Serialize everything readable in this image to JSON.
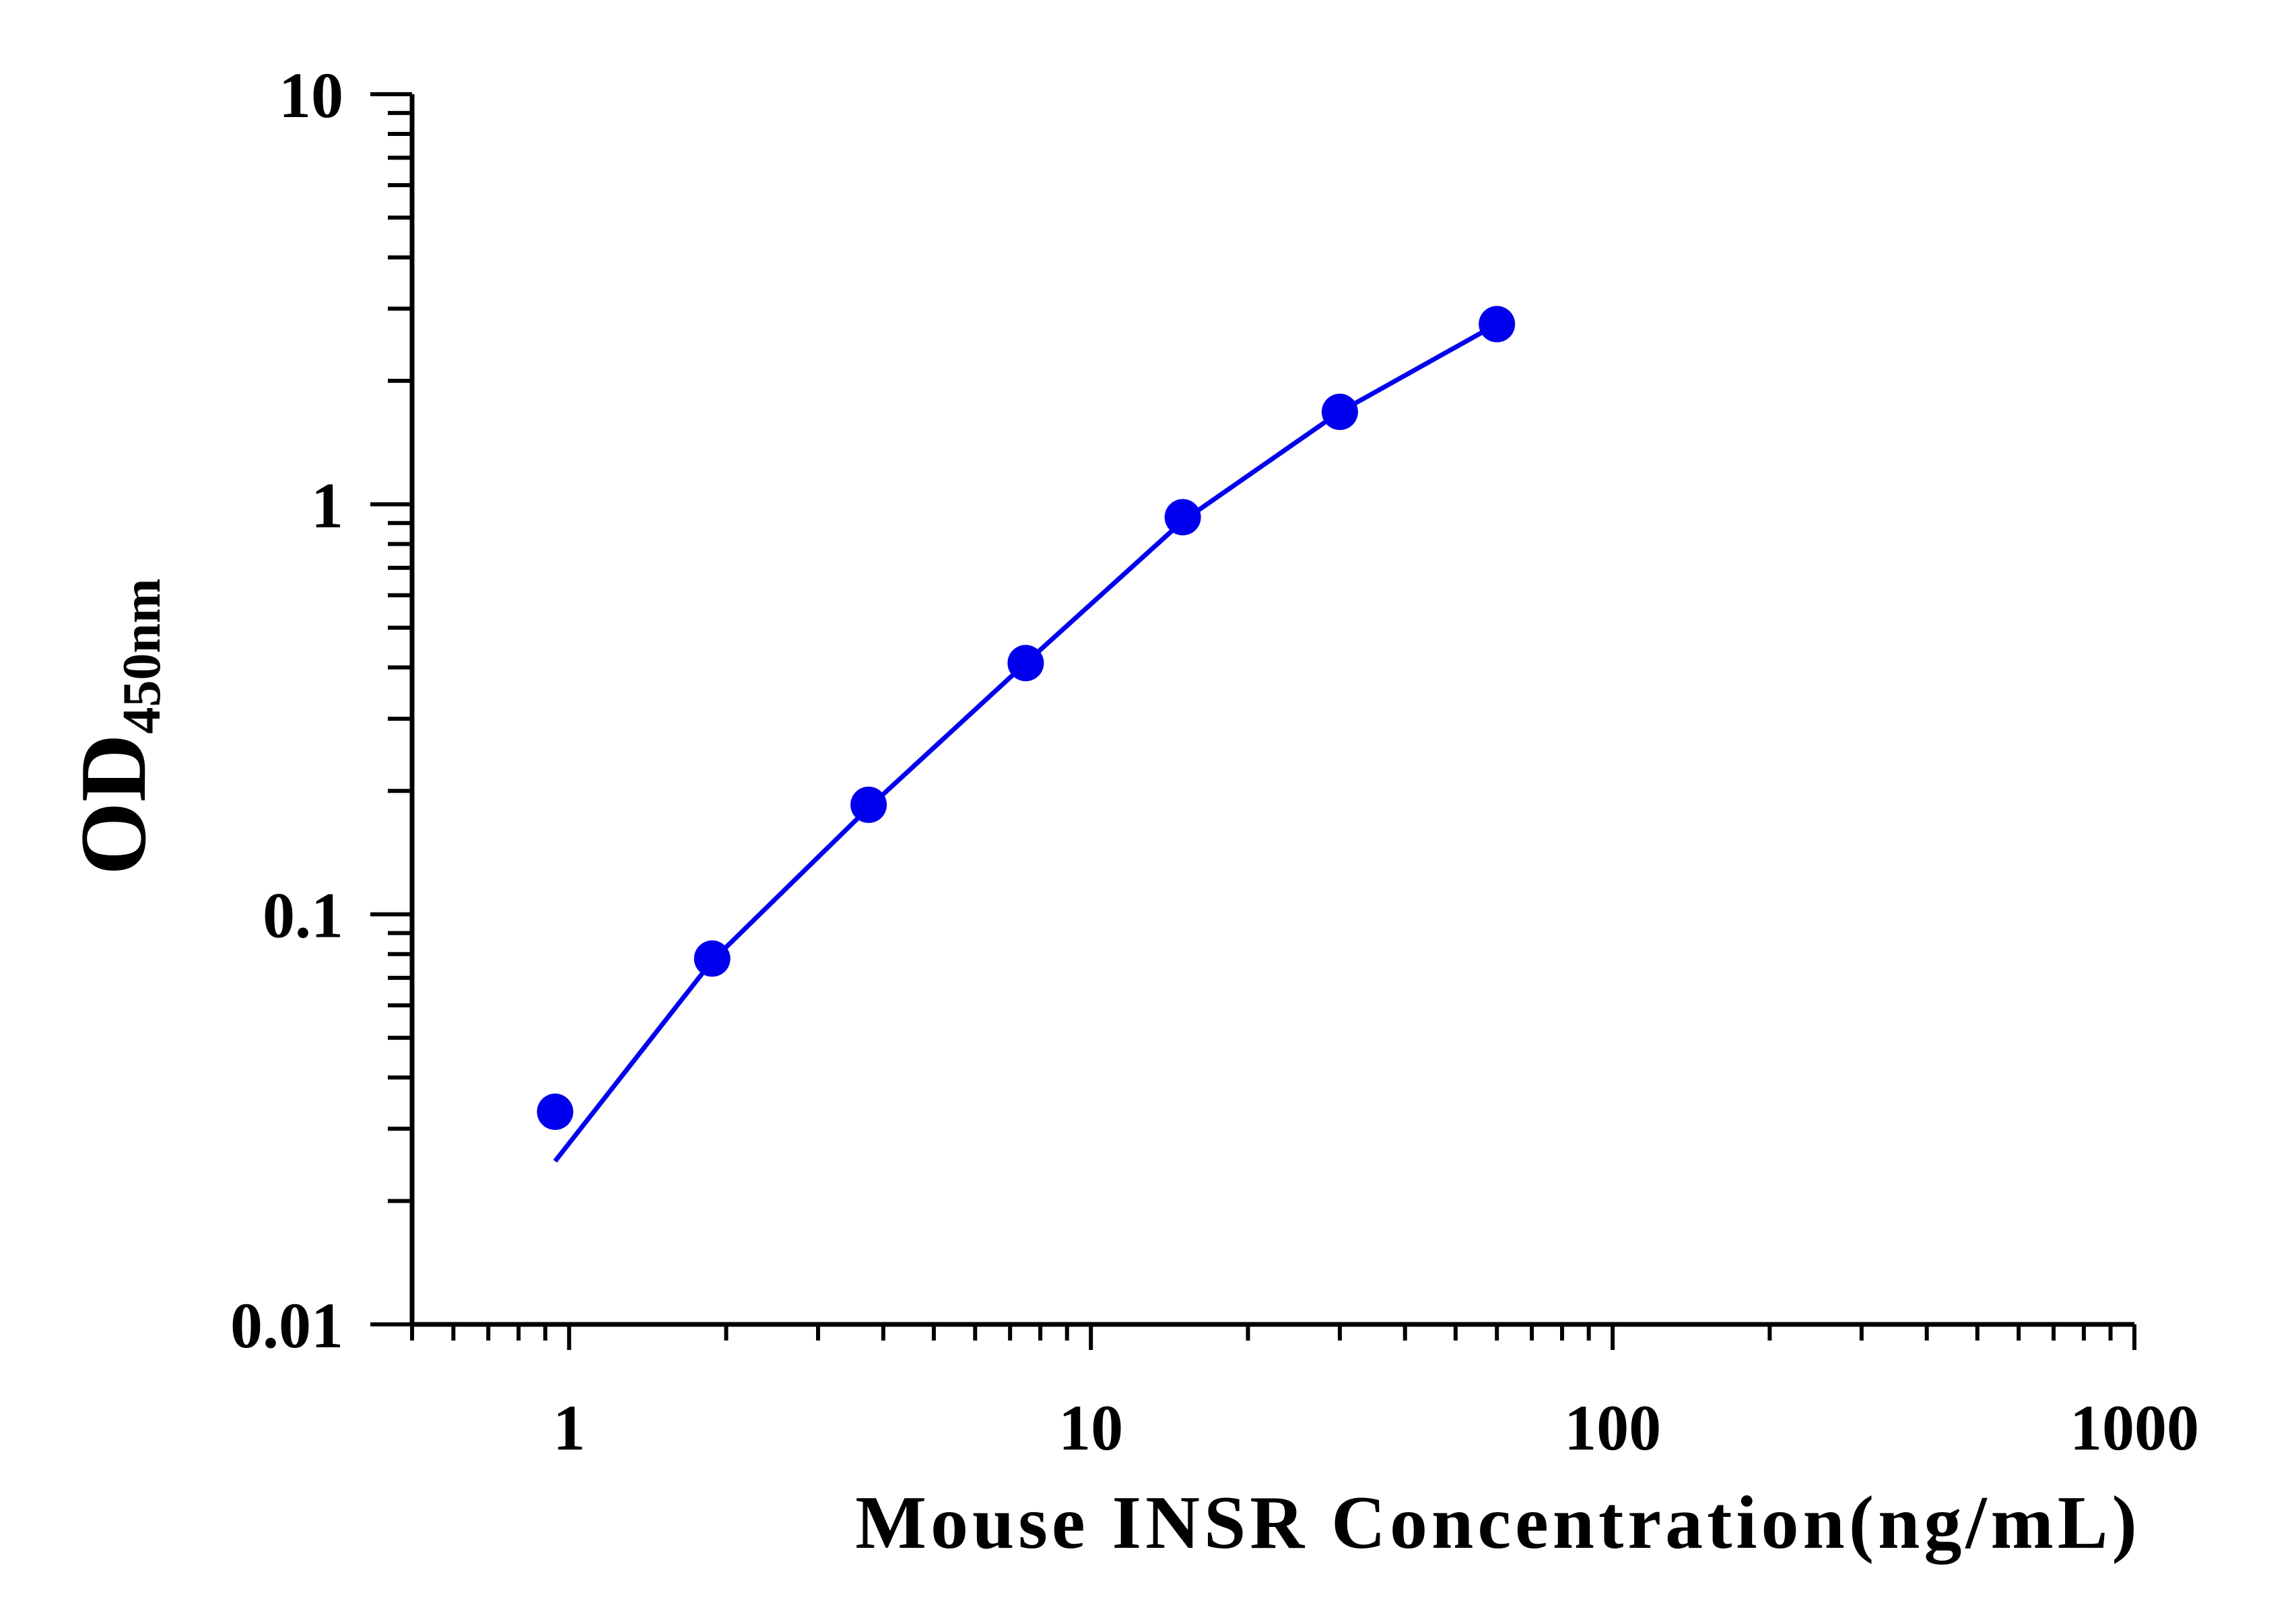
{
  "chart_data": {
    "type": "scatter",
    "x_scale": "log",
    "y_scale": "log",
    "xlabel": "Mouse INSR Concentration(ng/mL)",
    "ylabel_main": "OD",
    "ylabel_sub": "450nm",
    "xlim": [
      0.5,
      1000
    ],
    "ylim": [
      0.01,
      10
    ],
    "x_tick_labels": [
      "1",
      "10",
      "100",
      "1000"
    ],
    "y_tick_labels": [
      "0.01",
      "0.1",
      "1",
      "10"
    ],
    "grid": false,
    "points": {
      "x": [
        0.94,
        1.88,
        3.75,
        7.5,
        15,
        30,
        60
      ],
      "y": [
        0.033,
        0.078,
        0.185,
        0.41,
        0.93,
        1.68,
        2.75
      ]
    },
    "fit_curve": {
      "x": [
        0.94,
        1.88,
        3.75,
        7.5,
        15,
        30,
        60
      ],
      "y": [
        0.025,
        0.077,
        0.182,
        0.41,
        0.91,
        1.68,
        2.75
      ]
    },
    "colors": {
      "series": "#0000ee",
      "axis": "#000000"
    }
  }
}
